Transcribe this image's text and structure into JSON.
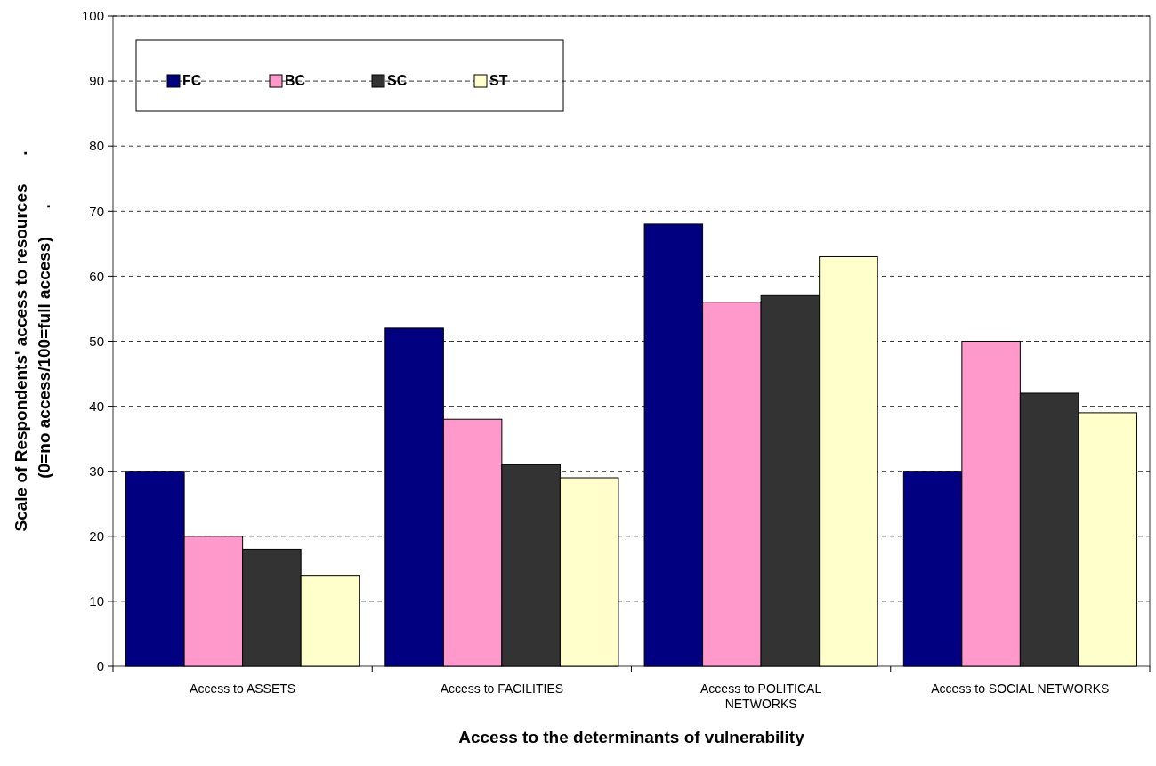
{
  "chart_data": {
    "type": "bar",
    "xlabel": "Access to the determinants of vulnerability",
    "ylabel": "Scale of Respondents' access to resources      .\n(0=no access/100=full access)      .",
    "categories": [
      "Access to ASSETS",
      "Access to FACILITIES",
      "Access to POLITICAL NETWORKS",
      "Access to SOCIAL NETWORKS"
    ],
    "series": [
      {
        "name": "FC",
        "color": "#000080",
        "values": [
          30,
          52,
          68,
          30
        ]
      },
      {
        "name": "BC",
        "color": "#ff99cc",
        "values": [
          20,
          38,
          56,
          50
        ]
      },
      {
        "name": "SC",
        "color": "#333333",
        "values": [
          18,
          31,
          57,
          42
        ]
      },
      {
        "name": "ST",
        "color": "#ffffcc",
        "values": [
          14,
          29,
          63,
          39
        ]
      }
    ],
    "ylim": [
      0,
      100
    ],
    "yticks": [
      0,
      10,
      20,
      30,
      40,
      50,
      60,
      70,
      80,
      90,
      100
    ],
    "grid": "y",
    "legend": "top left"
  }
}
